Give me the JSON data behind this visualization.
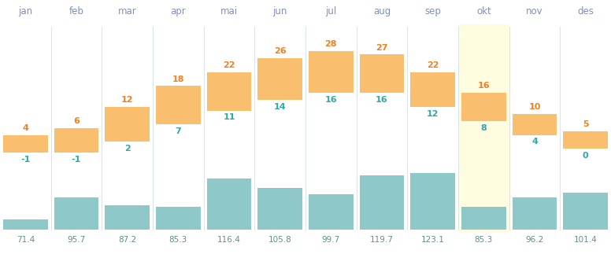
{
  "months": [
    "jan",
    "feb",
    "mar",
    "apr",
    "mai",
    "jun",
    "jul",
    "aug",
    "sep",
    "okt",
    "nov",
    "des"
  ],
  "temp_high": [
    4,
    6,
    12,
    18,
    22,
    26,
    28,
    27,
    22,
    16,
    10,
    5
  ],
  "temp_low": [
    -1,
    -1,
    2,
    7,
    11,
    14,
    16,
    16,
    12,
    8,
    4,
    0
  ],
  "rainfall": [
    71.4,
    95.7,
    87.2,
    85.3,
    116.4,
    105.8,
    99.7,
    119.7,
    123.1,
    85.3,
    96.2,
    101.4
  ],
  "bar_color_orange": "#F9BE6E",
  "bar_color_teal": "#8FC8C8",
  "highlight_col": 9,
  "highlight_bg": "#FFFCE0",
  "month_label_color": "#8090C0",
  "temp_high_color": "#F08020",
  "temp_low_color": "#30A8A8",
  "rainfall_label_color": "#609090",
  "bg_color": "#FFFFFF",
  "divider_color": "#D8E8E8",
  "temp_scale_low": -5,
  "temp_scale_high": 35,
  "rainfall_min_display": 60,
  "rainfall_max_display": 130
}
